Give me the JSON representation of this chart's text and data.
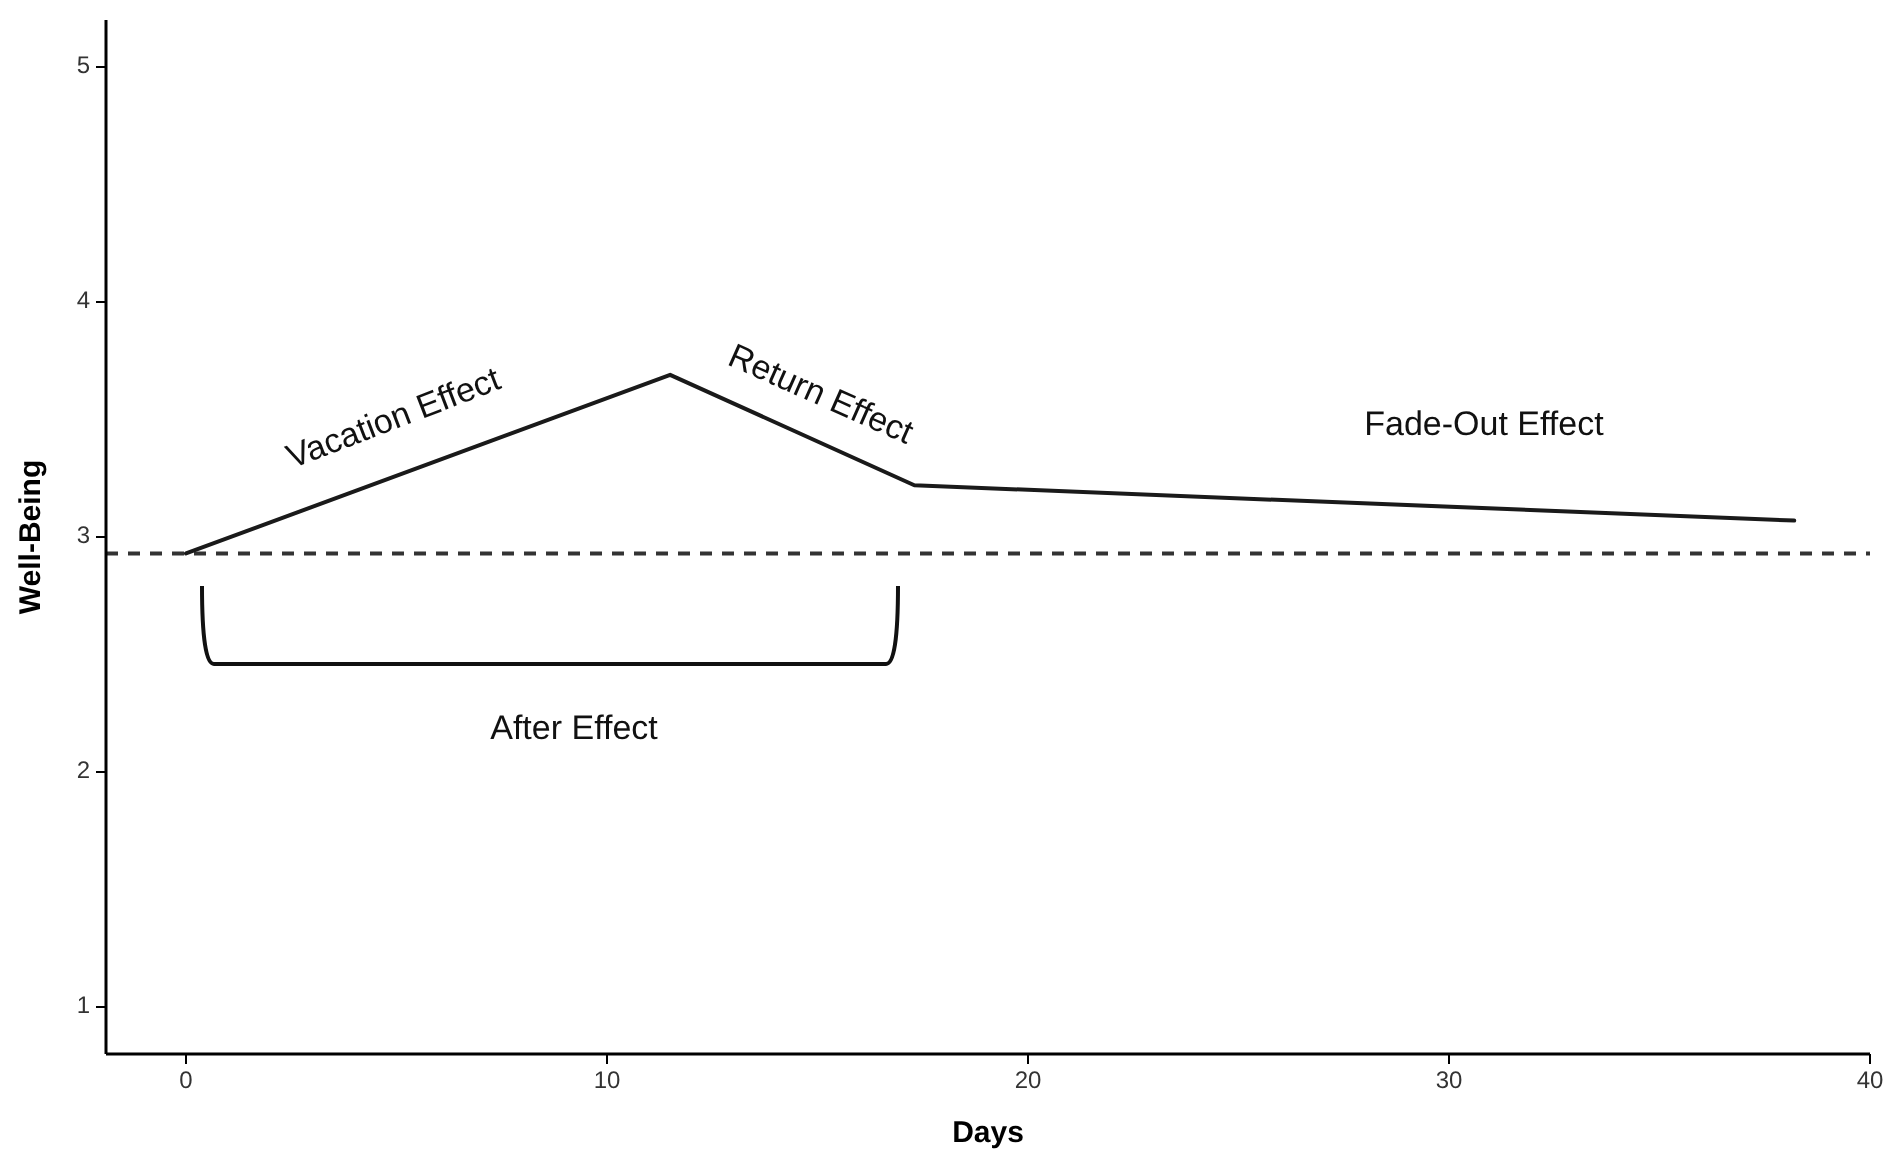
{
  "chart_data": {
    "type": "line",
    "xlabel": "Days",
    "ylabel": "Well-Being",
    "x": [
      0,
      11.5,
      17.3,
      38.2
    ],
    "series": [
      {
        "color": "#1a1a1a",
        "values": [
          2.93,
          3.69,
          3.22,
          3.07
        ]
      }
    ],
    "xlim": [
      -1.9,
      40
    ],
    "xticks": [
      0,
      10,
      20,
      30,
      40
    ],
    "ylim": [
      0.8,
      5.2
    ],
    "yticks": [
      1,
      2,
      3,
      4,
      5
    ],
    "ref_lines": [
      {
        "axis": "y",
        "value": 2.93,
        "color": "#333333",
        "line_style": "dashed"
      }
    ],
    "annotations": [
      "Vacation Effect",
      "Return Effect",
      "Fade-Out Effect",
      "After Effect"
    ],
    "marker": "none",
    "line_style": "solid"
  }
}
